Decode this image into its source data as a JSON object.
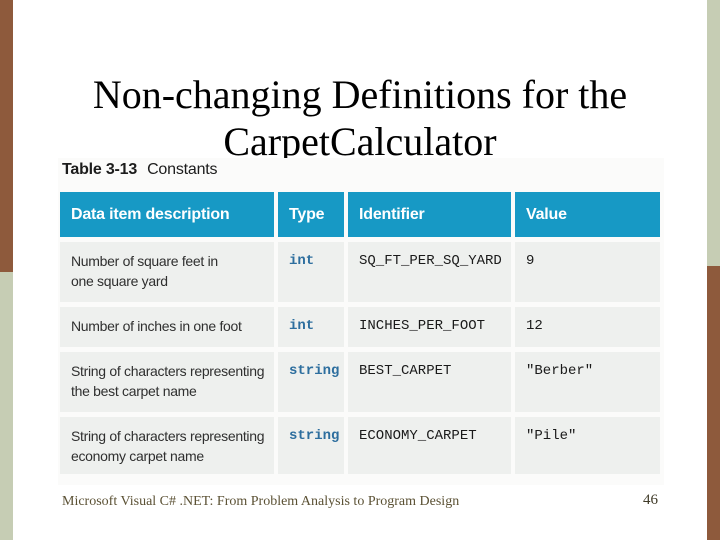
{
  "slide": {
    "title_line1": "Non-changing Definitions for the",
    "title_line2": "CarpetCalculator",
    "footer": "Microsoft Visual C# .NET: From Problem Analysis to Program Design",
    "page_number": "46"
  },
  "table": {
    "caption_label": "Table 3-13",
    "caption_text": "Constants",
    "columns": [
      "Data item description",
      "Type",
      "Identifier",
      "Value"
    ],
    "rows": [
      {
        "description_lines": [
          "Number of square feet in",
          "one square yard"
        ],
        "type": "int",
        "identifier": "SQ_FT_PER_SQ_YARD",
        "value": "9"
      },
      {
        "description_lines": [
          "Number of inches in one foot"
        ],
        "type": "int",
        "identifier": "INCHES_PER_FOOT",
        "value": "12"
      },
      {
        "description_lines": [
          "String of characters representing",
          "the best carpet name"
        ],
        "type": "string",
        "identifier": "BEST_CARPET",
        "value": "\"Berber\""
      },
      {
        "description_lines": [
          "String of characters representing",
          "economy carpet name"
        ],
        "type": "string",
        "identifier": "ECONOMY_CARPET",
        "value": "\"Pile\""
      }
    ]
  },
  "colors": {
    "header_teal": "#1799c5",
    "row_gray": "#eef0ee",
    "type_blue": "#2d6e9e",
    "bar_brown": "#8e5a3c",
    "bar_sage": "#c6cdb4"
  }
}
